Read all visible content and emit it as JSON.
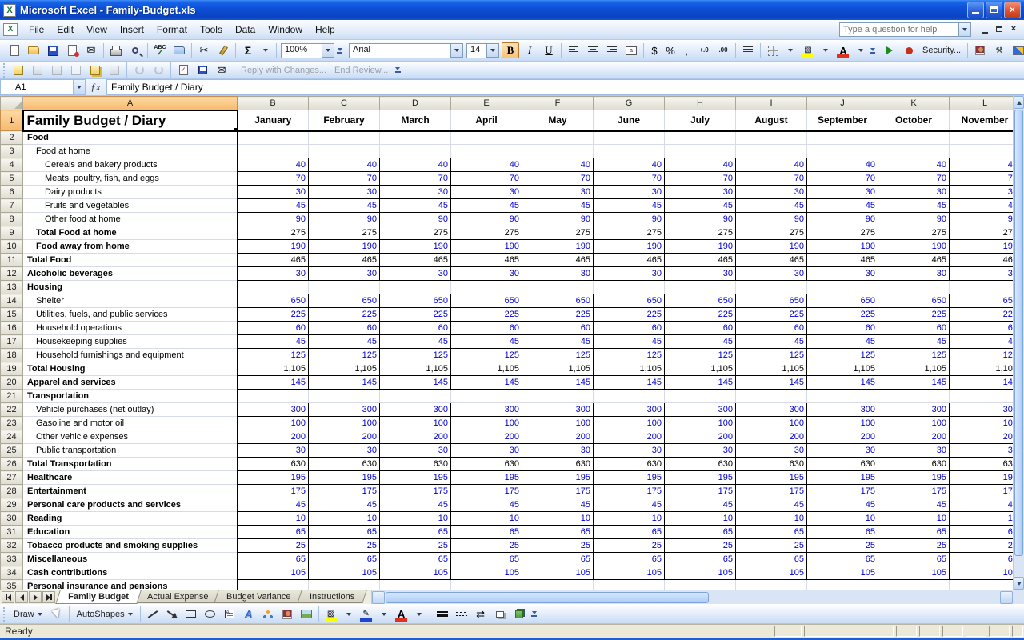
{
  "window": {
    "title": "Microsoft Excel - Family-Budget.xls"
  },
  "menu": {
    "items": [
      {
        "label": "File",
        "ul": 0
      },
      {
        "label": "Edit",
        "ul": 0
      },
      {
        "label": "View",
        "ul": 0
      },
      {
        "label": "Insert",
        "ul": 0
      },
      {
        "label": "Format",
        "ul": 1
      },
      {
        "label": "Tools",
        "ul": 0
      },
      {
        "label": "Data",
        "ul": 0
      },
      {
        "label": "Window",
        "ul": 0
      },
      {
        "label": "Help",
        "ul": 0
      }
    ],
    "help_placeholder": "Type a question for help"
  },
  "standard_toolbar": {
    "zoom": "100%"
  },
  "formatting_toolbar": {
    "font_name": "Arial",
    "font_size": "14"
  },
  "vb_toolbar": {
    "security": "Security..."
  },
  "review_toolbar": {
    "reply": "Reply with Changes...",
    "end": "End Review..."
  },
  "formula_bar": {
    "name_box": "A1",
    "formula": "Family Budget / Diary"
  },
  "grid": {
    "column_letters": [
      "A",
      "B",
      "C",
      "D",
      "E",
      "F",
      "G",
      "H",
      "I",
      "J",
      "K",
      "L"
    ],
    "months": [
      "January",
      "February",
      "March",
      "April",
      "May",
      "June",
      "July",
      "August",
      "September",
      "October",
      "November"
    ],
    "title": "Family Budget / Diary",
    "rows": [
      {
        "n": 2,
        "label": "Food",
        "bold": true,
        "indent": 0,
        "value": "",
        "input": false
      },
      {
        "n": 3,
        "label": "Food at home",
        "bold": false,
        "indent": 1,
        "value": "",
        "input": false
      },
      {
        "n": 4,
        "label": "Cereals and bakery products",
        "bold": false,
        "indent": 2,
        "value": "40",
        "input": true
      },
      {
        "n": 5,
        "label": "Meats, poultry, fish, and eggs",
        "bold": false,
        "indent": 2,
        "value": "70",
        "input": true
      },
      {
        "n": 6,
        "label": "Dairy products",
        "bold": false,
        "indent": 2,
        "value": "30",
        "input": true
      },
      {
        "n": 7,
        "label": "Fruits and vegetables",
        "bold": false,
        "indent": 2,
        "value": "45",
        "input": true
      },
      {
        "n": 8,
        "label": "Other food at home",
        "bold": false,
        "indent": 2,
        "value": "90",
        "input": true
      },
      {
        "n": 9,
        "label": "Total Food at home",
        "bold": true,
        "indent": 1,
        "value": "275",
        "input": false
      },
      {
        "n": 10,
        "label": "Food away from home",
        "bold": true,
        "indent": 1,
        "value": "190",
        "input": true
      },
      {
        "n": 11,
        "label": "Total Food",
        "bold": true,
        "indent": 0,
        "value": "465",
        "input": false
      },
      {
        "n": 12,
        "label": "Alcoholic beverages",
        "bold": true,
        "indent": 0,
        "value": "30",
        "input": true
      },
      {
        "n": 13,
        "label": "Housing",
        "bold": true,
        "indent": 0,
        "value": "",
        "input": false
      },
      {
        "n": 14,
        "label": "Shelter",
        "bold": false,
        "indent": 1,
        "value": "650",
        "input": true
      },
      {
        "n": 15,
        "label": "Utilities, fuels, and public services",
        "bold": false,
        "indent": 1,
        "value": "225",
        "input": true
      },
      {
        "n": 16,
        "label": "Household operations",
        "bold": false,
        "indent": 1,
        "value": "60",
        "input": true
      },
      {
        "n": 17,
        "label": "Housekeeping supplies",
        "bold": false,
        "indent": 1,
        "value": "45",
        "input": true
      },
      {
        "n": 18,
        "label": "Household furnishings and equipment",
        "bold": false,
        "indent": 1,
        "value": "125",
        "input": true
      },
      {
        "n": 19,
        "label": "Total Housing",
        "bold": true,
        "indent": 0,
        "value": "1,105",
        "input": false
      },
      {
        "n": 20,
        "label": "Apparel and services",
        "bold": true,
        "indent": 0,
        "value": "145",
        "input": true
      },
      {
        "n": 21,
        "label": "Transportation",
        "bold": true,
        "indent": 0,
        "value": "",
        "input": false
      },
      {
        "n": 22,
        "label": "Vehicle purchases (net outlay)",
        "bold": false,
        "indent": 1,
        "value": "300",
        "input": true
      },
      {
        "n": 23,
        "label": "Gasoline and motor oil",
        "bold": false,
        "indent": 1,
        "value": "100",
        "input": true
      },
      {
        "n": 24,
        "label": "Other vehicle expenses",
        "bold": false,
        "indent": 1,
        "value": "200",
        "input": true
      },
      {
        "n": 25,
        "label": "Public transportation",
        "bold": false,
        "indent": 1,
        "value": "30",
        "input": true
      },
      {
        "n": 26,
        "label": "Total Transportation",
        "bold": true,
        "indent": 0,
        "value": "630",
        "input": false
      },
      {
        "n": 27,
        "label": "Healthcare",
        "bold": true,
        "indent": 0,
        "value": "195",
        "input": true
      },
      {
        "n": 28,
        "label": "Entertainment",
        "bold": true,
        "indent": 0,
        "value": "175",
        "input": true
      },
      {
        "n": 29,
        "label": "Personal care products and services",
        "bold": true,
        "indent": 0,
        "value": "45",
        "input": true
      },
      {
        "n": 30,
        "label": "Reading",
        "bold": true,
        "indent": 0,
        "value": "10",
        "input": true
      },
      {
        "n": 31,
        "label": "Education",
        "bold": true,
        "indent": 0,
        "value": "65",
        "input": true
      },
      {
        "n": 32,
        "label": "Tobacco products and smoking supplies",
        "bold": true,
        "indent": 0,
        "value": "25",
        "input": true
      },
      {
        "n": 33,
        "label": "Miscellaneous",
        "bold": true,
        "indent": 0,
        "value": "65",
        "input": true
      },
      {
        "n": 34,
        "label": "Cash contributions",
        "bold": true,
        "indent": 0,
        "value": "105",
        "input": true
      },
      {
        "n": 35,
        "label": "Personal insurance and pensions",
        "bold": true,
        "indent": 0,
        "value": "",
        "input": false
      }
    ]
  },
  "sheet_tabs": [
    {
      "label": "Family Budget",
      "active": true
    },
    {
      "label": "Actual Expense",
      "active": false
    },
    {
      "label": "Budget Variance",
      "active": false
    },
    {
      "label": "Instructions",
      "active": false
    }
  ],
  "drawing_toolbar": {
    "draw": "Draw",
    "autoshapes": "AutoShapes"
  },
  "status_bar": {
    "text": "Ready"
  },
  "icons": {
    "email": "✉",
    "cut": "✂",
    "autosum": "Σ",
    "spelling_abc": "ABC",
    "spelling_check": "✓",
    "bold": "B",
    "italic": "I",
    "underline": "U",
    "currency": "$",
    "percent": "%",
    "comma": ",",
    "inc_decimal": "+.0",
    "dec_decimal": ".00",
    "fx": "ƒx",
    "font_color_letter": "A",
    "wordart_letter": "A",
    "arrow_style": "⇄",
    "close": "×",
    "app_letter": "X"
  },
  "colors": {
    "selected_header": "#F8C377",
    "value_blue": "#0000CD",
    "title_bar_blue": "#0D50D2",
    "gridline": "#D6DBE7"
  }
}
